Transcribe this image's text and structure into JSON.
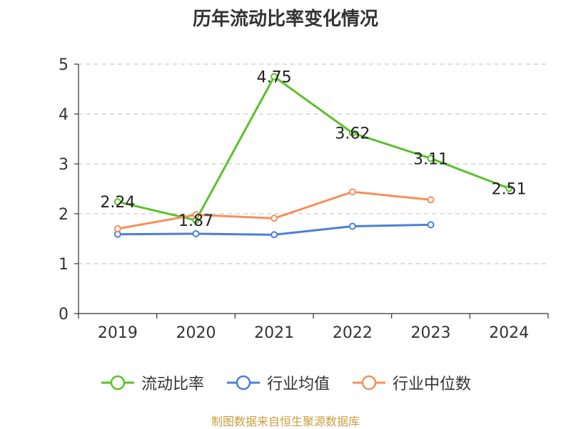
{
  "chart_data": {
    "type": "line",
    "title": "历年流动比率变化情况",
    "categories": [
      "2019",
      "2020",
      "2021",
      "2022",
      "2023",
      "2024"
    ],
    "ylim": [
      0,
      5
    ],
    "yticks": [
      0,
      1,
      2,
      3,
      4,
      5
    ],
    "grid": true,
    "legend_position": "bottom",
    "series": [
      {
        "name": "流动比率",
        "color": "#5bc12a",
        "values": [
          2.24,
          1.87,
          4.75,
          3.62,
          3.11,
          2.51
        ],
        "labels": [
          "2.24",
          "1.87",
          "4.75",
          "3.62",
          "3.11",
          "2.51"
        ]
      },
      {
        "name": "行业均值",
        "color": "#4d7fd9",
        "values": [
          1.59,
          1.6,
          1.58,
          1.75,
          1.78,
          null
        ]
      },
      {
        "name": "行业中位数",
        "color": "#f5905a",
        "values": [
          1.7,
          1.98,
          1.91,
          2.44,
          2.28,
          null
        ]
      }
    ]
  },
  "source": "制图数据来自恒生聚源数据库"
}
